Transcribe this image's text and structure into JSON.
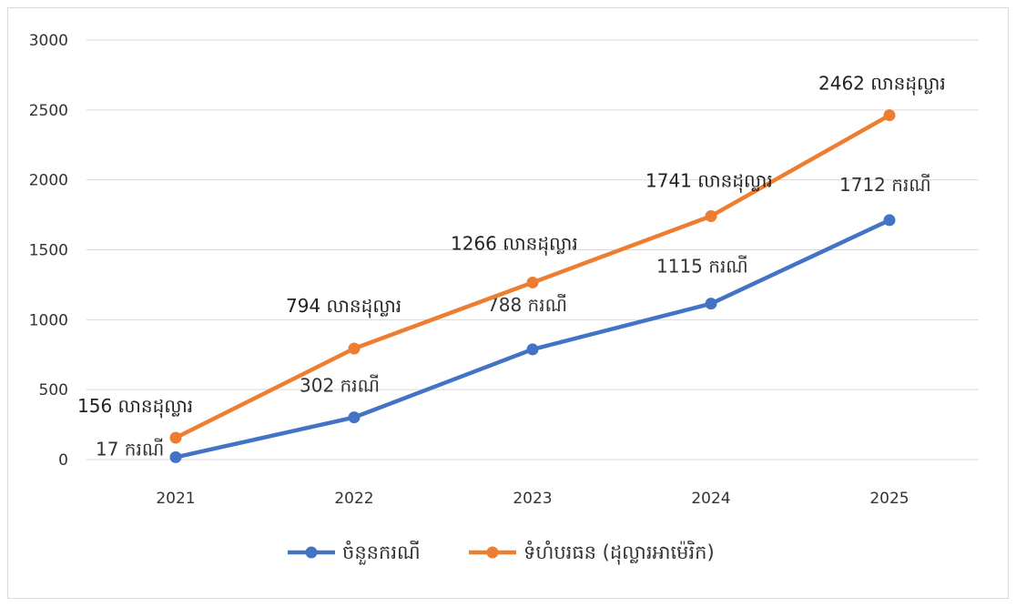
{
  "chart_data": {
    "type": "line",
    "title": "",
    "xlabel": "",
    "ylabel": "",
    "categories": [
      "2021",
      "2022",
      "2023",
      "2024",
      "2025"
    ],
    "ylim": [
      0,
      3000
    ],
    "yticks": [
      0,
      500,
      1000,
      1500,
      2000,
      2500,
      3000
    ],
    "grid": true,
    "legend": "bottom",
    "series": [
      {
        "name": "ចំនួនករណី",
        "color": "#4472c4",
        "values": [
          17,
          302,
          788,
          1115,
          1712
        ],
        "labels": [
          "17 ករណី",
          "302 ករណី",
          "788 ករណី",
          "1115 ករណី",
          "1712 ករណី"
        ]
      },
      {
        "name": "ទំហំបរធន (ដុល្លារអាម៉េរិក)",
        "color": "#ed7d31",
        "values": [
          156,
          794,
          1266,
          1741,
          2462
        ],
        "labels": [
          "156 លានដុល្លារ",
          "794 លានដុល្លារ",
          "1266 លានដុល្លារ",
          "1741 លានដុល្លារ",
          "2462 លានដុល្លារ"
        ]
      }
    ]
  }
}
